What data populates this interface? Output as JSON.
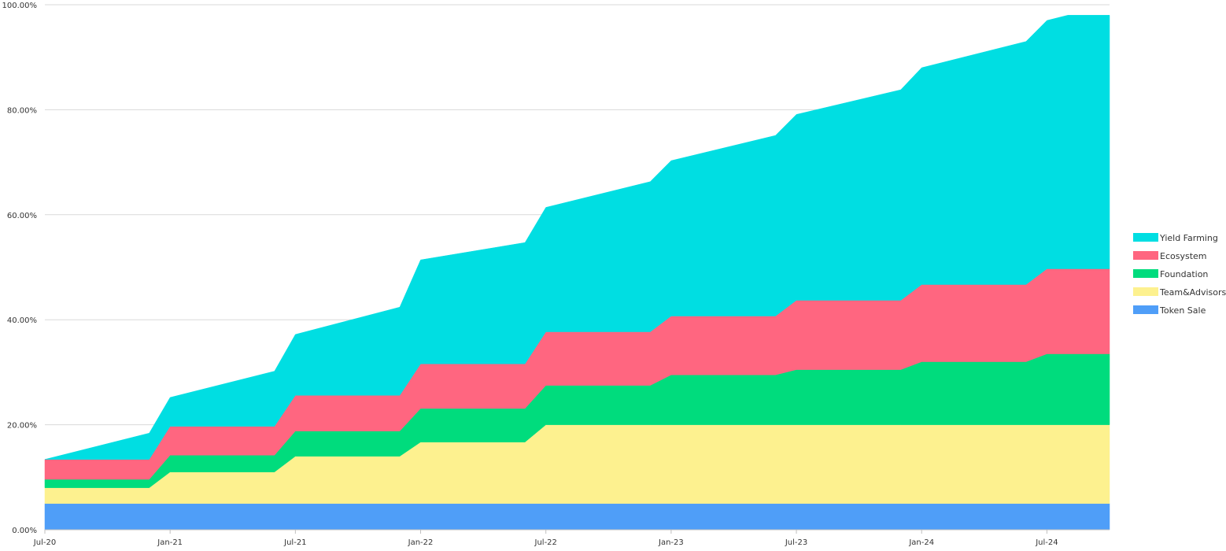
{
  "chart_data": {
    "type": "area",
    "stacked": true,
    "x": [
      "2020-07",
      "2020-12",
      "2021-01",
      "2021-06",
      "2021-07",
      "2021-12",
      "2022-01",
      "2022-06",
      "2022-07",
      "2022-12",
      "2023-01",
      "2023-06",
      "2023-07",
      "2023-12",
      "2024-01",
      "2024-06",
      "2024-07",
      "2024-08",
      "2024-09"
    ],
    "x_tick_labels": [
      "Jul-20",
      "Jan-21",
      "Jul-21",
      "Jan-22",
      "Jul-22",
      "Jan-23",
      "Jul-23",
      "Jan-24",
      "Jul-24"
    ],
    "x_tick_dates": [
      "2020-07",
      "2021-01",
      "2021-07",
      "2022-01",
      "2022-07",
      "2023-01",
      "2023-07",
      "2024-01",
      "2024-07"
    ],
    "ylim": [
      0,
      100
    ],
    "y_ticks": [
      0,
      20,
      40,
      60,
      80,
      100
    ],
    "y_tick_labels": [
      "0.00%",
      "20.00%",
      "40.00%",
      "60.00%",
      "80.00%",
      "100.00%"
    ],
    "grid": true,
    "legend_position": "right",
    "series": [
      {
        "name": "Token Sale",
        "color": "#4f9ef8",
        "values": [
          5,
          5,
          5,
          5,
          5,
          5,
          5,
          5,
          5,
          5,
          5,
          5,
          5,
          5,
          5,
          5,
          5,
          5,
          5
        ]
      },
      {
        "name": "Team&Advisors",
        "color": "#fdf18f",
        "values": [
          3,
          3,
          6,
          6,
          9,
          9,
          11.7,
          11.7,
          15,
          15,
          15,
          15,
          15,
          15,
          15,
          15,
          15,
          15,
          15
        ]
      },
      {
        "name": "Foundation",
        "color": "#00dc7d",
        "values": [
          1.6,
          1.6,
          3.2,
          3.2,
          4.8,
          4.8,
          6.4,
          6.4,
          7.5,
          7.5,
          9.5,
          9.5,
          10.5,
          10.5,
          12,
          12,
          13.5,
          13.5,
          13.5
        ]
      },
      {
        "name": "Ecosystem",
        "color": "#ff6680",
        "values": [
          3.8,
          3.8,
          5.5,
          5.5,
          6.8,
          6.8,
          8.5,
          8.5,
          10.2,
          10.2,
          11.2,
          11.2,
          13.2,
          13.2,
          14.7,
          14.7,
          16.2,
          16.2,
          16.2
        ]
      },
      {
        "name": "Yield Farming",
        "color": "#00dee2",
        "values": [
          0,
          5,
          5.5,
          10.5,
          11.6,
          16.8,
          19.8,
          23.1,
          23.7,
          28.6,
          29.6,
          34.4,
          35.4,
          40.1,
          41.3,
          46.3,
          47.3,
          48.3,
          48.3
        ]
      }
    ]
  }
}
